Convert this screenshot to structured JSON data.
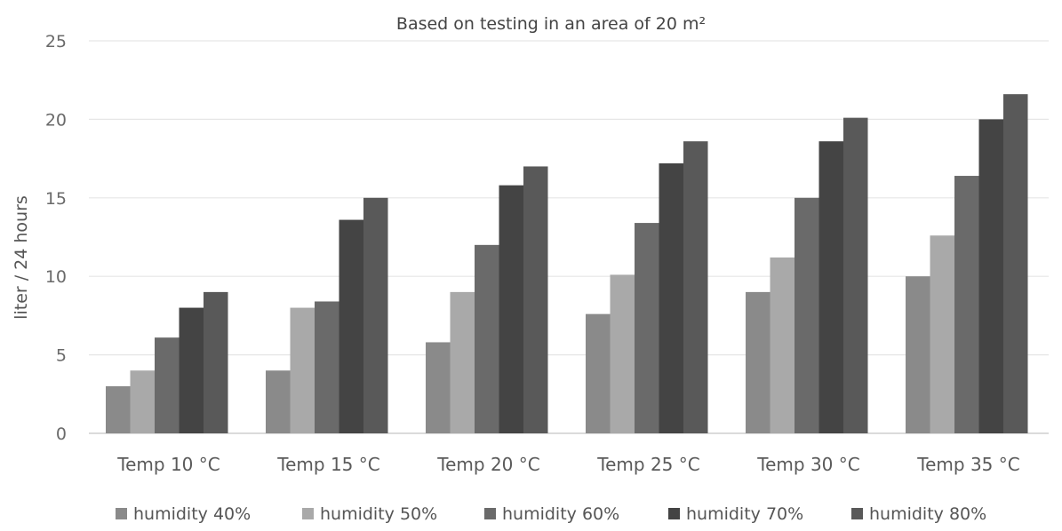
{
  "chart_data": {
    "type": "bar",
    "title": "",
    "subtitle": "Based on testing in an area of 20 m²",
    "xlabel": "",
    "ylabel": "liter / 24 hours",
    "ylim": [
      0,
      25
    ],
    "yticks": [
      0,
      5,
      10,
      15,
      20,
      25
    ],
    "grid": true,
    "legend_position": "bottom",
    "categories": [
      "Temp 10 °C",
      "Temp 15 °C",
      "Temp 20 °C",
      "Temp 25 °C",
      "Temp 30 °C",
      "Temp 35 °C"
    ],
    "series": [
      {
        "name": "humidity 40%",
        "color": "#8a8a8a",
        "values": [
          3.0,
          4.0,
          5.8,
          7.6,
          9.0,
          10.0
        ]
      },
      {
        "name": "humidity 50%",
        "color": "#a9a9a9",
        "values": [
          4.0,
          8.0,
          9.0,
          10.1,
          11.2,
          12.6
        ]
      },
      {
        "name": "humidity 60%",
        "color": "#6a6a6a",
        "values": [
          6.1,
          8.4,
          12.0,
          13.4,
          15.0,
          16.4
        ]
      },
      {
        "name": "humidity 70%",
        "color": "#444444",
        "values": [
          8.0,
          13.6,
          15.8,
          17.2,
          18.6,
          20.0
        ]
      },
      {
        "name": "humidity 80%",
        "color": "#595959",
        "values": [
          9.0,
          15.0,
          17.0,
          18.6,
          20.1,
          21.6
        ]
      }
    ]
  }
}
